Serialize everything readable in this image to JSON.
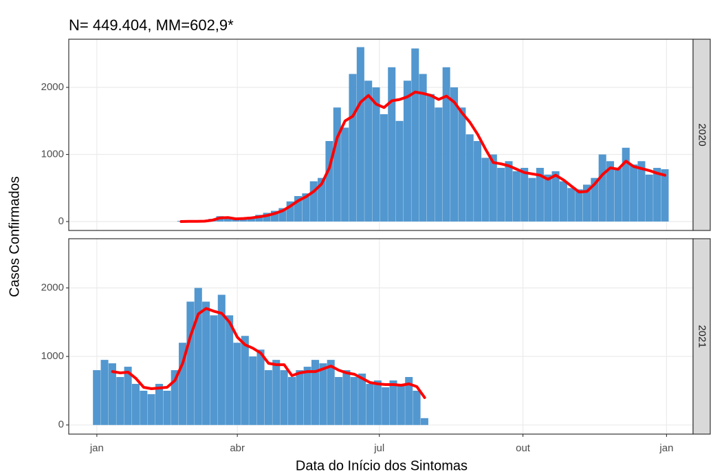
{
  "chart_data": {
    "type": "faceted-bar-line",
    "title": "N= 449.404, MM=602,9*",
    "x_label": "Data do Início dos Sintomas",
    "y_label": "Casos Confirmados",
    "xlim": [
      -17,
      383
    ],
    "xticks": [
      {
        "value": 1,
        "label": "jan"
      },
      {
        "value": 91,
        "label": "abr"
      },
      {
        "value": 182,
        "label": "jul"
      },
      {
        "value": 274,
        "label": "out"
      },
      {
        "value": 366,
        "label": "jan"
      }
    ],
    "ylim": [
      -133,
      2718
    ],
    "yticks": [
      0,
      1000,
      2000
    ],
    "grid": true,
    "bar_width": 5,
    "panels": [
      {
        "strip": "2020",
        "x": [
          55,
          60,
          65,
          70,
          75,
          80,
          85,
          90,
          95,
          100,
          105,
          110,
          115,
          120,
          125,
          130,
          135,
          140,
          145,
          150,
          155,
          160,
          165,
          170,
          175,
          180,
          185,
          190,
          195,
          200,
          205,
          210,
          215,
          220,
          225,
          230,
          235,
          240,
          245,
          250,
          255,
          260,
          265,
          270,
          275,
          280,
          285,
          290,
          295,
          300,
          305,
          310,
          315,
          320,
          325,
          330,
          335,
          340,
          345,
          350,
          355,
          360,
          365
        ],
        "series": [
          {
            "type": "bar",
            "color": "#5297cf",
            "values": [
              10,
              5,
              15,
              10,
              40,
              80,
              50,
              40,
              60,
              70,
              100,
              130,
              160,
              200,
              300,
              380,
              420,
              600,
              650,
              1200,
              1700,
              1400,
              2200,
              2600,
              2100,
              2000,
              1600,
              2300,
              1500,
              2100,
              2580,
              2200,
              1900,
              1700,
              2300,
              2000,
              1700,
              1300,
              1200,
              950,
              1000,
              800,
              900,
              750,
              800,
              650,
              800,
              700,
              750,
              600,
              500,
              480,
              550,
              650,
              1000,
              900,
              800,
              1100,
              850,
              900,
              700,
              800,
              780
            ]
          },
          {
            "type": "line",
            "color": "#ff0000",
            "values": [
              0,
              2,
              3,
              5,
              20,
              55,
              60,
              40,
              45,
              55,
              70,
              90,
              120,
              160,
              230,
              310,
              370,
              450,
              560,
              800,
              1250,
              1500,
              1570,
              1780,
              1880,
              1750,
              1700,
              1800,
              1820,
              1860,
              1930,
              1910,
              1880,
              1820,
              1870,
              1780,
              1620,
              1480,
              1300,
              1080,
              880,
              860,
              830,
              780,
              730,
              710,
              690,
              630,
              690,
              620,
              530,
              440,
              450,
              560,
              700,
              800,
              780,
              900,
              820,
              790,
              760,
              720,
              690
            ]
          }
        ]
      },
      {
        "strip": "2021",
        "x": [
          1,
          6,
          11,
          16,
          21,
          26,
          31,
          36,
          41,
          46,
          51,
          56,
          61,
          66,
          71,
          76,
          81,
          86,
          91,
          96,
          101,
          106,
          111,
          116,
          121,
          126,
          131,
          136,
          141,
          146,
          151,
          156,
          161,
          166,
          171,
          176,
          181,
          186,
          191,
          196,
          201,
          206,
          211
        ],
        "series": [
          {
            "type": "bar",
            "color": "#5297cf",
            "values": [
              800,
              950,
              900,
              700,
              850,
              600,
              500,
              450,
              600,
              500,
              800,
              1200,
              1800,
              2000,
              1800,
              1600,
              1900,
              1600,
              1200,
              1300,
              1000,
              1100,
              800,
              950,
              800,
              700,
              800,
              850,
              950,
              900,
              950,
              700,
              800,
              700,
              750,
              600,
              650,
              550,
              650,
              600,
              700,
              500,
              100
            ]
          },
          {
            "type": "line",
            "color": "#ff0000",
            "values": [
              null,
              null,
              780,
              760,
              770,
              680,
              550,
              530,
              540,
              550,
              650,
              900,
              1300,
              1620,
              1700,
              1660,
              1630,
              1500,
              1280,
              1170,
              1120,
              1050,
              900,
              880,
              880,
              720,
              760,
              780,
              780,
              820,
              860,
              800,
              760,
              740,
              680,
              620,
              600,
              590,
              590,
              580,
              600,
              560,
              400
            ]
          }
        ]
      }
    ]
  }
}
